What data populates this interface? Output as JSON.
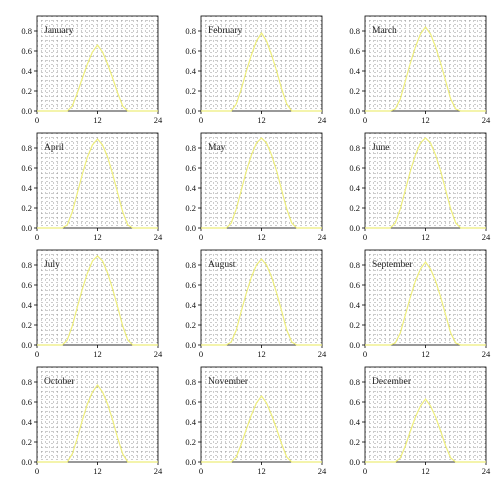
{
  "style": {
    "curve_color": "#eeee7a",
    "grid_color": "#9a9a9a",
    "axis_color": "#000000"
  },
  "chart_data": [
    {
      "type": "line",
      "title": "January",
      "xlim": [
        0,
        24
      ],
      "ylim": [
        0,
        0.95
      ],
      "xticks": [
        "0",
        "12",
        "24"
      ],
      "yticks": [
        "0.0",
        "0.2",
        "0.4",
        "0.6",
        "0.8"
      ],
      "grid": true,
      "x": [
        0,
        5,
        6,
        7,
        8,
        9,
        10,
        11,
        12,
        13,
        14,
        15,
        16,
        17,
        18,
        19,
        24
      ],
      "y": [
        0,
        0,
        0,
        0.05,
        0.18,
        0.33,
        0.47,
        0.59,
        0.66,
        0.59,
        0.47,
        0.33,
        0.18,
        0.05,
        0,
        0,
        0
      ]
    },
    {
      "type": "line",
      "title": "February",
      "xlim": [
        0,
        24
      ],
      "ylim": [
        0,
        0.95
      ],
      "xticks": [
        "0",
        "12",
        "24"
      ],
      "yticks": [
        "0.0",
        "0.2",
        "0.4",
        "0.6",
        "0.8"
      ],
      "grid": true,
      "x": [
        0,
        5,
        6,
        7,
        8,
        9,
        10,
        11,
        12,
        13,
        14,
        15,
        16,
        17,
        18,
        19,
        24
      ],
      "y": [
        0,
        0,
        0,
        0.07,
        0.22,
        0.4,
        0.56,
        0.7,
        0.78,
        0.7,
        0.56,
        0.4,
        0.22,
        0.07,
        0,
        0,
        0
      ]
    },
    {
      "type": "line",
      "title": "March",
      "xlim": [
        0,
        24
      ],
      "ylim": [
        0,
        0.95
      ],
      "xticks": [
        "0",
        "12",
        "24"
      ],
      "yticks": [
        "0.0",
        "0.2",
        "0.4",
        "0.6",
        "0.8"
      ],
      "grid": true,
      "x": [
        0,
        5,
        6,
        7,
        8,
        9,
        10,
        11,
        12,
        13,
        14,
        15,
        16,
        17,
        18,
        19,
        24
      ],
      "y": [
        0,
        0,
        0.02,
        0.12,
        0.3,
        0.48,
        0.64,
        0.77,
        0.84,
        0.77,
        0.64,
        0.48,
        0.3,
        0.12,
        0.02,
        0,
        0
      ]
    },
    {
      "type": "line",
      "title": "April",
      "xlim": [
        0,
        24
      ],
      "ylim": [
        0,
        0.95
      ],
      "xticks": [
        "0",
        "12",
        "24"
      ],
      "yticks": [
        "0.0",
        "0.2",
        "0.4",
        "0.6",
        "0.8"
      ],
      "grid": true,
      "x": [
        0,
        5,
        6,
        7,
        8,
        9,
        10,
        11,
        12,
        13,
        14,
        15,
        16,
        17,
        18,
        19,
        24
      ],
      "y": [
        0,
        0,
        0.03,
        0.16,
        0.35,
        0.54,
        0.71,
        0.83,
        0.89,
        0.83,
        0.71,
        0.54,
        0.35,
        0.16,
        0.03,
        0,
        0
      ]
    },
    {
      "type": "line",
      "title": "May",
      "xlim": [
        0,
        24
      ],
      "ylim": [
        0,
        0.95
      ],
      "xticks": [
        "0",
        "12",
        "24"
      ],
      "yticks": [
        "0.0",
        "0.2",
        "0.4",
        "0.6",
        "0.8"
      ],
      "grid": true,
      "x": [
        0,
        5,
        6,
        7,
        8,
        9,
        10,
        11,
        12,
        13,
        14,
        15,
        16,
        17,
        18,
        19,
        24
      ],
      "y": [
        0,
        0,
        0.05,
        0.19,
        0.38,
        0.57,
        0.73,
        0.85,
        0.9,
        0.85,
        0.73,
        0.57,
        0.38,
        0.19,
        0.05,
        0,
        0
      ]
    },
    {
      "type": "line",
      "title": "June",
      "xlim": [
        0,
        24
      ],
      "ylim": [
        0,
        0.95
      ],
      "xticks": [
        "0",
        "12",
        "24"
      ],
      "yticks": [
        "0.0",
        "0.2",
        "0.4",
        "0.6",
        "0.8"
      ],
      "grid": true,
      "x": [
        0,
        5,
        6,
        7,
        8,
        9,
        10,
        11,
        12,
        13,
        14,
        15,
        16,
        17,
        18,
        19,
        24
      ],
      "y": [
        0,
        0,
        0.05,
        0.19,
        0.38,
        0.57,
        0.73,
        0.85,
        0.9,
        0.85,
        0.73,
        0.57,
        0.38,
        0.19,
        0.05,
        0,
        0
      ]
    },
    {
      "type": "line",
      "title": "July",
      "xlim": [
        0,
        24
      ],
      "ylim": [
        0,
        0.95
      ],
      "xticks": [
        "0",
        "12",
        "24"
      ],
      "yticks": [
        "0.0",
        "0.2",
        "0.4",
        "0.6",
        "0.8"
      ],
      "grid": true,
      "x": [
        0,
        5,
        6,
        7,
        8,
        9,
        10,
        11,
        12,
        13,
        14,
        15,
        16,
        17,
        18,
        19,
        24
      ],
      "y": [
        0,
        0,
        0.05,
        0.19,
        0.38,
        0.56,
        0.72,
        0.84,
        0.89,
        0.84,
        0.72,
        0.56,
        0.38,
        0.19,
        0.05,
        0,
        0
      ]
    },
    {
      "type": "line",
      "title": "August",
      "xlim": [
        0,
        24
      ],
      "ylim": [
        0,
        0.95
      ],
      "xticks": [
        "0",
        "12",
        "24"
      ],
      "yticks": [
        "0.0",
        "0.2",
        "0.4",
        "0.6",
        "0.8"
      ],
      "grid": true,
      "x": [
        0,
        5,
        6,
        7,
        8,
        9,
        10,
        11,
        12,
        13,
        14,
        15,
        16,
        17,
        18,
        19,
        24
      ],
      "y": [
        0,
        0,
        0.03,
        0.15,
        0.34,
        0.52,
        0.68,
        0.8,
        0.86,
        0.8,
        0.68,
        0.52,
        0.34,
        0.15,
        0.03,
        0,
        0
      ]
    },
    {
      "type": "line",
      "title": "September",
      "xlim": [
        0,
        24
      ],
      "ylim": [
        0,
        0.95
      ],
      "xticks": [
        "0",
        "12",
        "24"
      ],
      "yticks": [
        "0.0",
        "0.2",
        "0.4",
        "0.6",
        "0.8"
      ],
      "grid": true,
      "x": [
        0,
        5,
        6,
        7,
        8,
        9,
        10,
        11,
        12,
        13,
        14,
        15,
        16,
        17,
        18,
        19,
        24
      ],
      "y": [
        0,
        0,
        0.02,
        0.12,
        0.3,
        0.48,
        0.64,
        0.76,
        0.83,
        0.76,
        0.64,
        0.48,
        0.3,
        0.12,
        0.02,
        0,
        0
      ]
    },
    {
      "type": "line",
      "title": "October",
      "xlim": [
        0,
        24
      ],
      "ylim": [
        0,
        0.95
      ],
      "xticks": [
        "0",
        "12",
        "24"
      ],
      "yticks": [
        "0.0",
        "0.2",
        "0.4",
        "0.6",
        "0.8"
      ],
      "grid": true,
      "x": [
        0,
        5,
        6,
        7,
        8,
        9,
        10,
        11,
        12,
        13,
        14,
        15,
        16,
        17,
        18,
        19,
        24
      ],
      "y": [
        0,
        0,
        0,
        0.08,
        0.24,
        0.42,
        0.58,
        0.7,
        0.77,
        0.7,
        0.58,
        0.42,
        0.24,
        0.08,
        0,
        0,
        0
      ]
    },
    {
      "type": "line",
      "title": "November",
      "xlim": [
        0,
        24
      ],
      "ylim": [
        0,
        0.95
      ],
      "xticks": [
        "0",
        "12",
        "24"
      ],
      "yticks": [
        "0.0",
        "0.2",
        "0.4",
        "0.6",
        "0.8"
      ],
      "grid": true,
      "x": [
        0,
        5,
        6,
        7,
        8,
        9,
        10,
        11,
        12,
        13,
        14,
        15,
        16,
        17,
        18,
        19,
        24
      ],
      "y": [
        0,
        0,
        0,
        0.05,
        0.18,
        0.33,
        0.47,
        0.59,
        0.66,
        0.59,
        0.47,
        0.33,
        0.18,
        0.05,
        0,
        0,
        0
      ]
    },
    {
      "type": "line",
      "title": "December",
      "xlim": [
        0,
        24
      ],
      "ylim": [
        0,
        0.95
      ],
      "xticks": [
        "0",
        "12",
        "24"
      ],
      "yticks": [
        "0.0",
        "0.2",
        "0.4",
        "0.6",
        "0.8"
      ],
      "grid": true,
      "x": [
        0,
        5,
        6,
        7,
        8,
        9,
        10,
        11,
        12,
        13,
        14,
        15,
        16,
        17,
        18,
        19,
        24
      ],
      "y": [
        0,
        0,
        0,
        0.04,
        0.16,
        0.31,
        0.45,
        0.56,
        0.63,
        0.56,
        0.45,
        0.31,
        0.16,
        0.04,
        0,
        0,
        0
      ]
    }
  ]
}
